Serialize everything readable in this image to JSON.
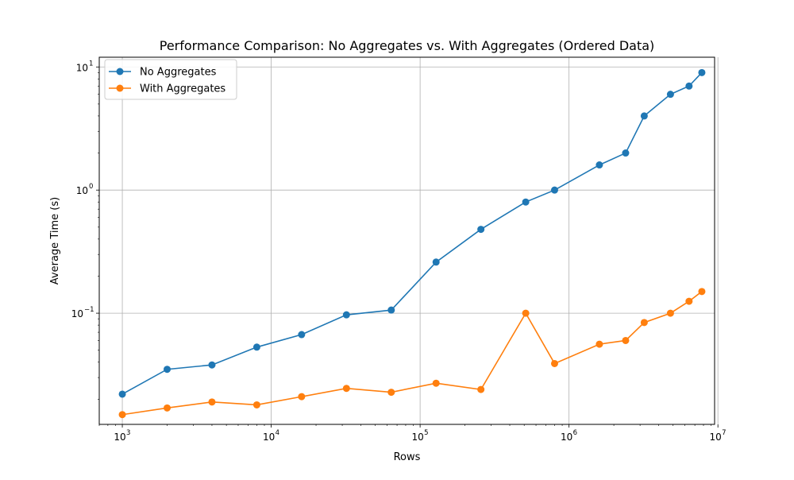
{
  "chart_data": {
    "type": "line",
    "title": "Performance Comparison: No Aggregates vs. With Aggregates (Ordered Data)",
    "xlabel": "Rows",
    "ylabel": "Average Time (s)",
    "xscale": "log",
    "yscale": "log",
    "xlim": [
      700,
      9500000
    ],
    "ylim": [
      0.0125,
      12
    ],
    "grid": true,
    "legend_position": "upper-left",
    "x_ticks": [
      {
        "value": 1000,
        "base": "10",
        "exp": "3"
      },
      {
        "value": 10000,
        "base": "10",
        "exp": "4"
      },
      {
        "value": 100000,
        "base": "10",
        "exp": "5"
      },
      {
        "value": 1000000,
        "base": "10",
        "exp": "6"
      },
      {
        "value": 10000000,
        "base": "10",
        "exp": "7"
      }
    ],
    "y_ticks": [
      {
        "value": 0.1,
        "base": "10",
        "exp": "−1"
      },
      {
        "value": 1,
        "base": "10",
        "exp": "0"
      },
      {
        "value": 10,
        "base": "10",
        "exp": "1"
      }
    ],
    "x": [
      1000,
      2000,
      4000,
      8000,
      16000,
      32000,
      64000,
      128000,
      256000,
      512000,
      800000,
      1600000,
      2400000,
      3200000,
      4800000,
      6400000,
      7800000
    ],
    "series": [
      {
        "name": "No Aggregates",
        "color": "#1f77b4",
        "values": [
          0.022,
          0.035,
          0.038,
          0.053,
          0.067,
          0.097,
          0.106,
          0.26,
          0.48,
          0.8,
          1.0,
          1.6,
          2.0,
          4.0,
          6.0,
          7.0,
          9.0
        ]
      },
      {
        "name": "With Aggregates",
        "color": "#ff7f0e",
        "values": [
          0.015,
          0.017,
          0.019,
          0.018,
          0.021,
          0.0245,
          0.0228,
          0.027,
          0.024,
          0.1,
          0.039,
          0.056,
          0.06,
          0.084,
          0.1,
          0.125,
          0.15
        ]
      }
    ]
  }
}
